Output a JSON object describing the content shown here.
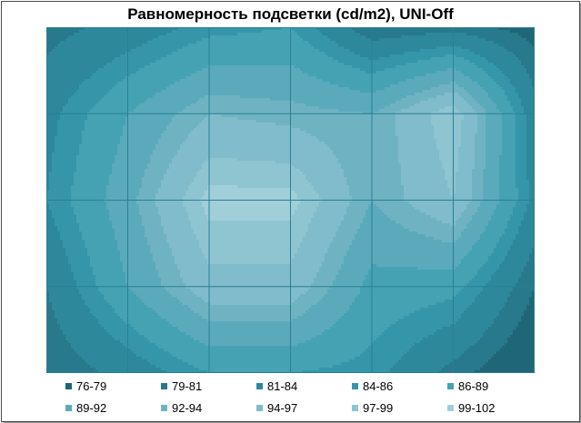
{
  "chart_data": {
    "type": "heatmap",
    "title": "Равномерность подсветки (cd/m2), UNI-Off",
    "xlabel": "",
    "ylabel": "",
    "grid": true,
    "legend_placement": "bottom",
    "columns": 6,
    "rows": 4,
    "ranges": [
      {
        "label": "76-79",
        "min": 76,
        "max": 79,
        "color": "#1f6678"
      },
      {
        "label": "79-81",
        "min": 79,
        "max": 81,
        "color": "#27798b"
      },
      {
        "label": "81-84",
        "min": 81,
        "max": 84,
        "color": "#2d889b"
      },
      {
        "label": "84-86",
        "min": 84,
        "max": 86,
        "color": "#3596a9"
      },
      {
        "label": "86-89",
        "min": 86,
        "max": 89,
        "color": "#44a2b3"
      },
      {
        "label": "89-92",
        "min": 89,
        "max": 92,
        "color": "#5aaabb"
      },
      {
        "label": "92-94",
        "min": 92,
        "max": 94,
        "color": "#6fb3c3"
      },
      {
        "label": "94-97",
        "min": 94,
        "max": 97,
        "color": "#80bccb"
      },
      {
        "label": "97-99",
        "min": 97,
        "max": 99,
        "color": "#8fc4d1"
      },
      {
        "label": "99-102",
        "min": 99,
        "max": 102,
        "color": "#a0ced9"
      }
    ],
    "values": [
      [
        80,
        82,
        85,
        86,
        79,
        80,
        78
      ],
      [
        83,
        89,
        94,
        93,
        92,
        99,
        82
      ],
      [
        84,
        91,
        100,
        100,
        92,
        97,
        83
      ],
      [
        81,
        89,
        96,
        96,
        88,
        87,
        79
      ],
      [
        79,
        82,
        86,
        86,
        85,
        80,
        76
      ]
    ]
  }
}
